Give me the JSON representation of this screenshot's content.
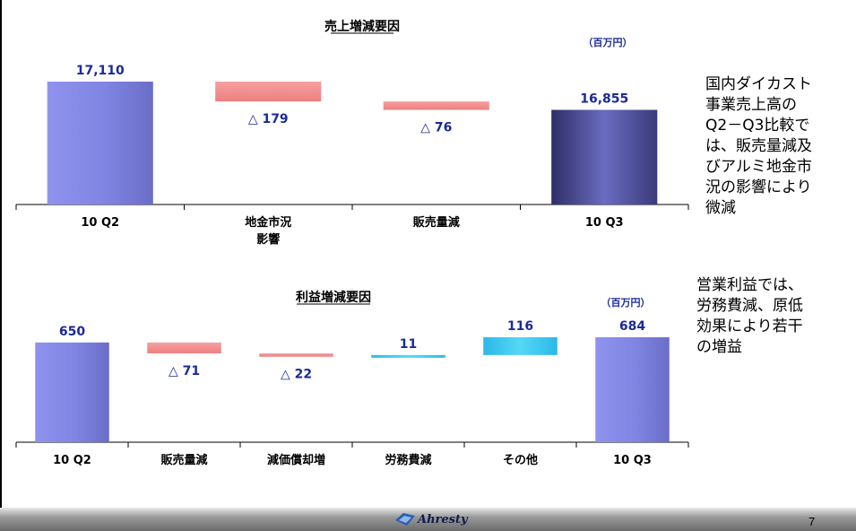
{
  "chart_data": [
    {
      "type": "bar",
      "title": "売上増減要因",
      "unit": "（百万円）",
      "categories": [
        "10 Q2",
        "地金市況\n影響",
        "販売量減",
        "10 Q3"
      ],
      "labels": [
        "17,110",
        "△ 179",
        "△ 76",
        "16,855"
      ],
      "values": [
        17110,
        -179,
        -76,
        16855
      ],
      "kinds": [
        "total",
        "decrease",
        "decrease",
        "total"
      ]
    },
    {
      "type": "bar",
      "title": "利益増減要因",
      "unit": "（百万円）",
      "categories": [
        "10 Q2",
        "販売量減",
        "減価償却増",
        "労務費減",
        "その他",
        "10 Q3"
      ],
      "labels": [
        "650",
        "△ 71",
        "△ 22",
        "11",
        "116",
        "684"
      ],
      "values": [
        650,
        -71,
        -22,
        11,
        116,
        684
      ],
      "kinds": [
        "total",
        "decrease",
        "decrease",
        "increase",
        "increase",
        "total"
      ]
    }
  ],
  "side_notes": {
    "sales": "国内ダイカスト\n事業売上高の\nQ2－Q3比較で\nは、販売量減及\nびアルミ地金市\n況の影響により\n微減",
    "profit": "営業利益では、\n労務費減、原低\n効果により若干\nの増益"
  },
  "footer": {
    "logo_text": "Ahresty",
    "page_number": "7"
  },
  "colors": {
    "total": "#7b7fdc",
    "total_dark": "#3b3b78",
    "decrease": "#f28c8c",
    "increase": "#33c8ee",
    "label": "#1a2a9a"
  }
}
